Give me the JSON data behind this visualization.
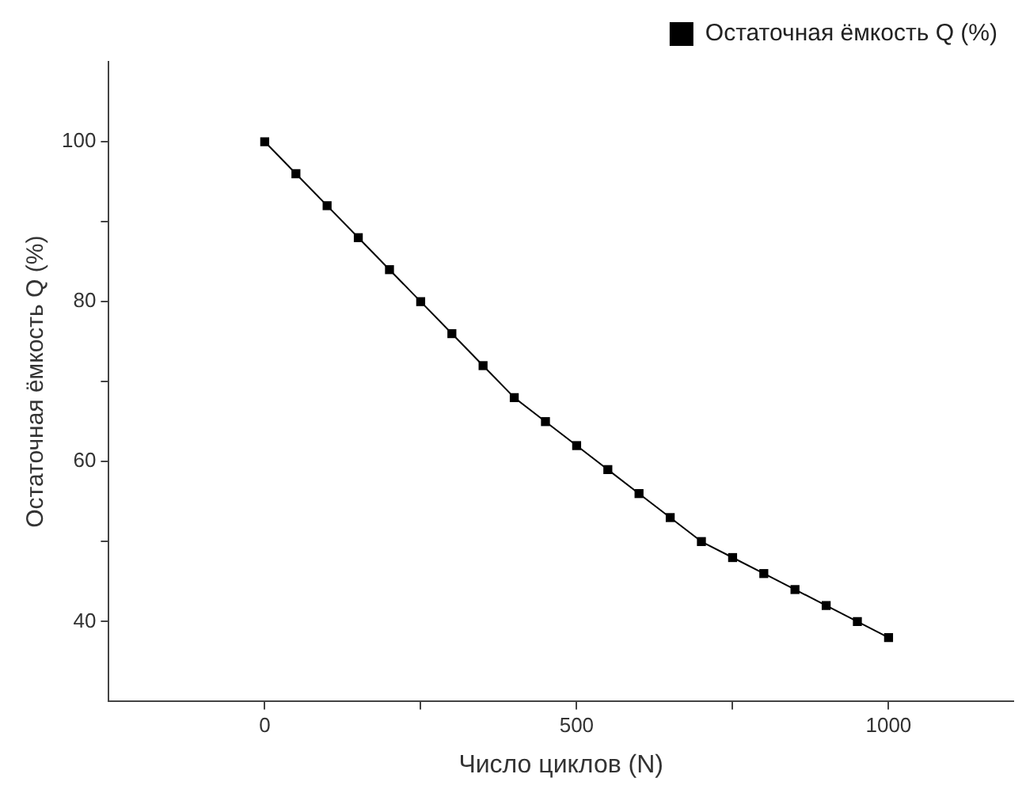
{
  "chart_data": {
    "type": "line",
    "xlabel": "Число циклов (N)",
    "ylabel": "Остаточная ёмкость Q (%)",
    "x": [
      0,
      50,
      100,
      150,
      200,
      250,
      300,
      350,
      400,
      450,
      500,
      550,
      600,
      650,
      700,
      750,
      800,
      850,
      900,
      950,
      1000
    ],
    "series": [
      {
        "name": "Остаточная ёмкость Q (%)",
        "color": "#000000",
        "values": [
          100,
          96,
          92,
          88,
          84,
          80,
          76,
          72,
          68,
          65,
          62,
          59,
          56,
          53,
          50,
          48,
          46,
          44,
          42,
          40,
          38
        ]
      }
    ],
    "xlim": [
      -250,
      1200
    ],
    "xticks": [
      0,
      {
        "value": 250,
        "label": null
      },
      500,
      {
        "value": 750,
        "label": null
      },
      1000
    ],
    "ylim": [
      30,
      110
    ],
    "yticks": [
      40,
      {
        "value": 50,
        "label": null
      },
      60,
      {
        "value": 70,
        "label": null
      },
      80,
      {
        "value": 90,
        "label": null
      },
      100
    ],
    "grid": false,
    "legend": "top right",
    "marker": "square",
    "line_style": "solid"
  }
}
